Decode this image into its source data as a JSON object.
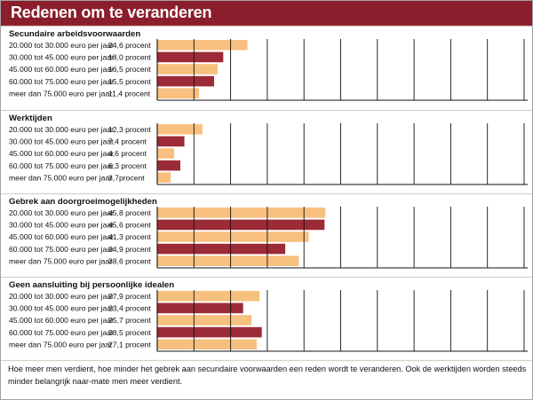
{
  "title": "Redenen om te veranderen",
  "caption": "Hoe meer men verdient, hoe minder het gebrek aan secundaire voorwaarden een reden wordt te veranderen. Ook de werktijden worden steeds minder belangrijk naar-mate men meer verdient.",
  "colors": {
    "header": "#8b1e2c",
    "bar_light": "#f8c07e",
    "bar_dark": "#9c2a37",
    "divider": "#d8d0c4"
  },
  "chart_data": [
    {
      "type": "bar",
      "title": "Secundaire arbeidsvoorwaarden",
      "categories": [
        "20.000 tot 30.000 euro per jaar",
        "30.000 tot 45.000 euro per jaar",
        "45.000 tot 60.000 euro per jaar",
        "60.000 tot 75.000 euro per jaar",
        "meer dan 75.000 euro per jaar"
      ],
      "values": [
        24.6,
        18.0,
        16.5,
        15.5,
        11.4
      ],
      "labels": [
        "24,6 procent",
        "18,0 procent",
        "16,5 procent",
        "15,5 procent",
        "11,4 procent"
      ],
      "xlim": [
        0,
        100
      ]
    },
    {
      "type": "bar",
      "title": "Werktijden",
      "categories": [
        "20.000 tot 30.000 euro per jaar",
        "30.000 tot 45.000 euro per jaar",
        "45.000 tot 60.000 euro per jaar",
        "60.000 tot 75.000 euro per jaar",
        "meer dan 75.000 euro per jaar"
      ],
      "values": [
        12.3,
        7.4,
        4.6,
        6.3,
        3.7
      ],
      "labels": [
        "12,3 procent",
        "7,4 procent",
        "4,6 procent",
        "6,3 procent",
        "3,7procent"
      ],
      "xlim": [
        0,
        100
      ]
    },
    {
      "type": "bar",
      "title": "Gebrek aan doorgroeimogelijkheden",
      "categories": [
        "20.000 tot 30.000 euro per jaar",
        "30.000 tot 45.000 euro per jaar",
        "45.000 tot 60.000 euro per jaar",
        "60.000 tot 75.000 euro per jaar",
        "meer dan 75.000 euro per jaar"
      ],
      "values": [
        45.8,
        45.6,
        41.3,
        34.9,
        38.6
      ],
      "labels": [
        "45,8 procent",
        "45,6 procent",
        "41,3 procent",
        "34,9 procent",
        "38,6 procent"
      ],
      "xlim": [
        0,
        100
      ]
    },
    {
      "type": "bar",
      "title": "Geen aansluiting bij persoonlijke idealen",
      "categories": [
        "20.000 tot 30.000 euro per jaar",
        "30.000 tot 45.000 euro per jaar",
        "45.000 tot 60.000 euro per jaar",
        "60.000 tot 75.000 euro per jaar",
        "meer dan 75.000 euro per jaar"
      ],
      "values": [
        27.9,
        23.4,
        25.7,
        28.5,
        27.1
      ],
      "labels": [
        "27,9 procent",
        "23,4 procent",
        "25,7 procent",
        "28,5 procent",
        "27,1 procent"
      ],
      "xlim": [
        0,
        100
      ]
    }
  ]
}
